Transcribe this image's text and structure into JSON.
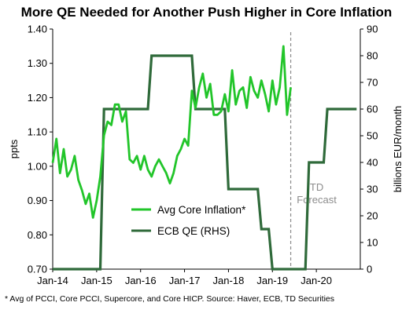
{
  "chart_data": {
    "type": "line",
    "title": "More QE Needed for Another Push Higher in Core Inflation",
    "ylabel_left": "ppts",
    "ylabel_right": "billions EUR/month",
    "ylim_left": [
      0.7,
      1.4
    ],
    "ylim_right": [
      0,
      90
    ],
    "yticks_left": [
      "0.70",
      "0.80",
      "0.90",
      "1.00",
      "1.10",
      "1.20",
      "1.30",
      "1.40"
    ],
    "yticks_right": [
      "0",
      "10",
      "20",
      "30",
      "40",
      "50",
      "60",
      "70",
      "80",
      "90"
    ],
    "xticks": [
      "Jan-14",
      "Jan-15",
      "Jan-16",
      "Jan-17",
      "Jan-18",
      "Jan-19",
      "Jan-20"
    ],
    "x_range": [
      "2014-01",
      "2020-12"
    ],
    "forecast_line_x": "2019-06",
    "forecast_label": [
      "TD",
      "Forecast"
    ],
    "legend_position": "center",
    "colors": {
      "core_inflation": "#22c52a",
      "ecb_qe": "#2f6a3a",
      "forecast_line": "#8c8c8c"
    },
    "series": [
      {
        "name": "Avg Core Inflation*",
        "axis": "left",
        "x": [
          "2014-01",
          "2014-02",
          "2014-03",
          "2014-04",
          "2014-05",
          "2014-06",
          "2014-07",
          "2014-08",
          "2014-09",
          "2014-10",
          "2014-11",
          "2014-12",
          "2015-01",
          "2015-02",
          "2015-03",
          "2015-04",
          "2015-05",
          "2015-06",
          "2015-07",
          "2015-08",
          "2015-09",
          "2015-10",
          "2015-11",
          "2015-12",
          "2016-01",
          "2016-02",
          "2016-03",
          "2016-04",
          "2016-05",
          "2016-06",
          "2016-07",
          "2016-08",
          "2016-09",
          "2016-10",
          "2016-11",
          "2016-12",
          "2017-01",
          "2017-02",
          "2017-03",
          "2017-04",
          "2017-05",
          "2017-06",
          "2017-07",
          "2017-08",
          "2017-09",
          "2017-10",
          "2017-11",
          "2017-12",
          "2018-01",
          "2018-02",
          "2018-03",
          "2018-04",
          "2018-05",
          "2018-06",
          "2018-07",
          "2018-08",
          "2018-09",
          "2018-10",
          "2018-11",
          "2018-12",
          "2019-01",
          "2019-02",
          "2019-03",
          "2019-04",
          "2019-05",
          "2019-06"
        ],
        "values": [
          1.01,
          1.08,
          0.98,
          1.05,
          0.97,
          0.99,
          1.03,
          0.96,
          0.93,
          0.89,
          0.92,
          0.85,
          0.9,
          0.97,
          1.09,
          1.13,
          1.12,
          1.18,
          1.18,
          1.13,
          1.16,
          1.02,
          1.01,
          1.03,
          0.99,
          1.03,
          0.99,
          0.97,
          1.0,
          1.02,
          1.0,
          0.98,
          0.95,
          0.98,
          1.03,
          1.05,
          1.08,
          1.06,
          1.22,
          1.17,
          1.23,
          1.27,
          1.2,
          1.24,
          1.15,
          1.15,
          1.16,
          1.21,
          1.16,
          1.28,
          1.18,
          1.22,
          1.23,
          1.17,
          1.26,
          1.22,
          1.2,
          1.25,
          1.21,
          1.16,
          1.25,
          1.18,
          1.23,
          1.35,
          1.15,
          1.23
        ]
      },
      {
        "name": "ECB QE (RHS)",
        "axis": "right",
        "x": [
          "2014-01",
          "2015-02",
          "2015-03",
          "2016-03",
          "2016-04",
          "2017-03",
          "2017-04",
          "2017-12",
          "2018-01",
          "2018-09",
          "2018-10",
          "2018-12",
          "2019-01",
          "2019-10",
          "2019-11",
          "2020-03",
          "2020-04",
          "2020-12"
        ],
        "values": [
          0,
          0,
          60,
          60,
          80,
          80,
          60,
          60,
          30,
          30,
          15,
          15,
          0,
          0,
          40,
          40,
          60,
          60
        ]
      }
    ]
  },
  "footnote": "* Avg of PCCI, Core PCCI, Supercore, and Core HICP. Source: Haver, ECB, TD Securities"
}
